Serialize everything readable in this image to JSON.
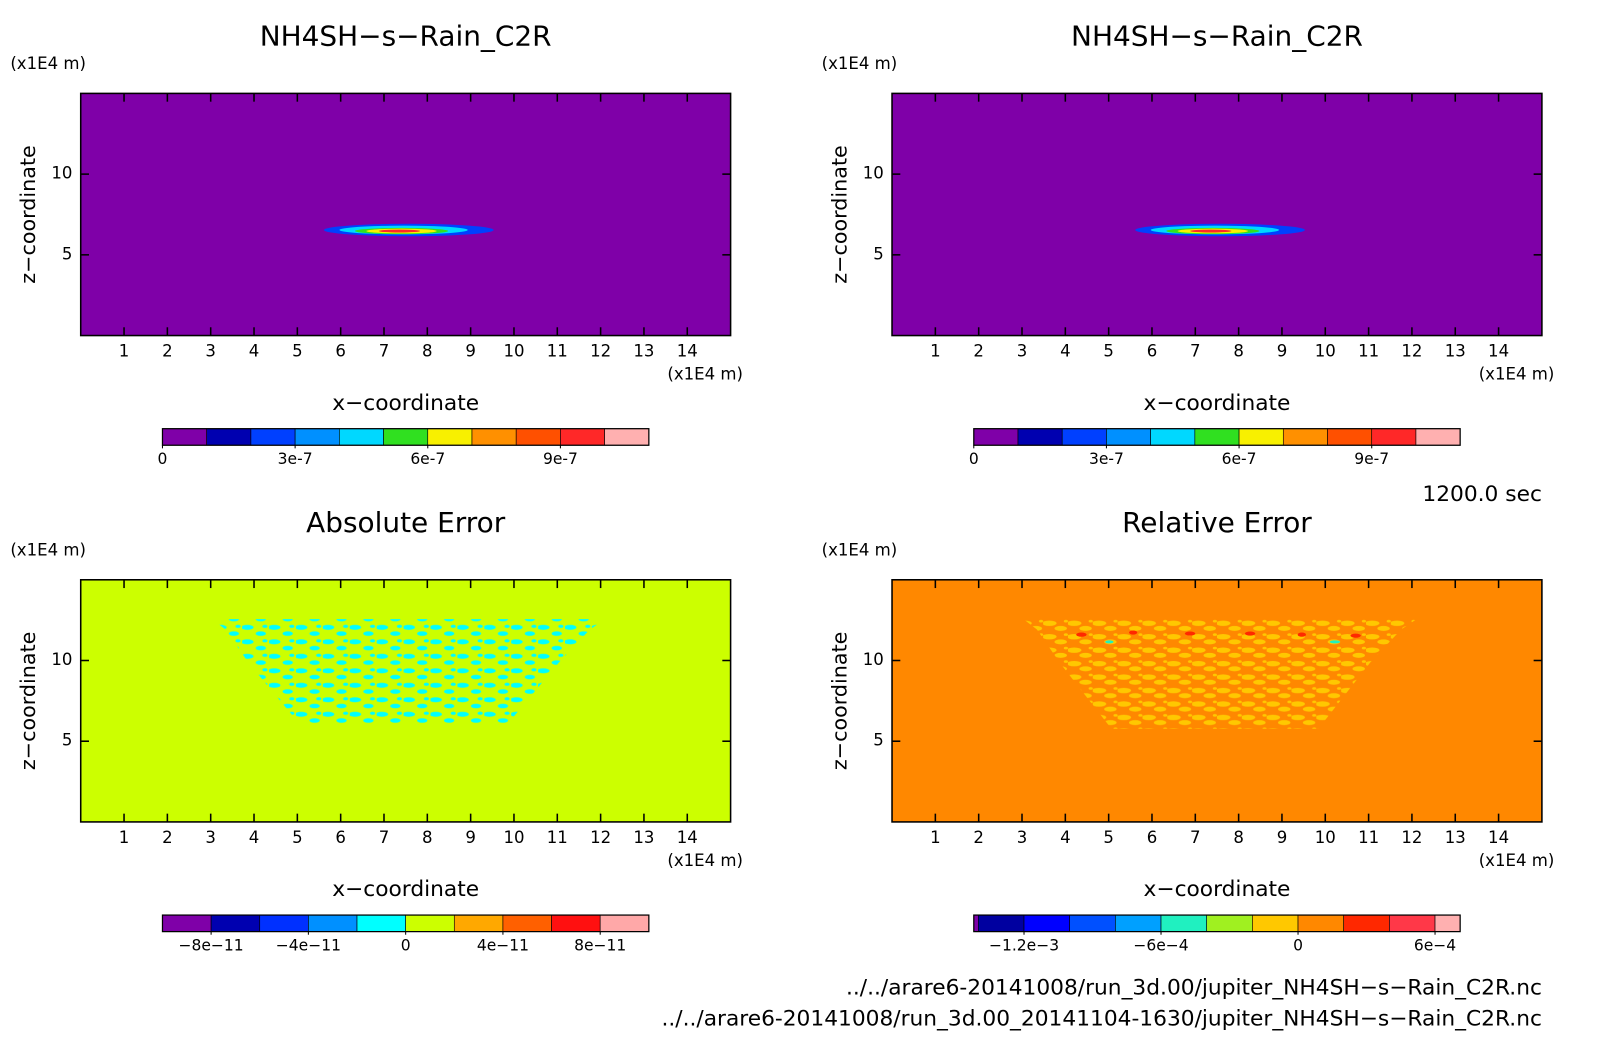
{
  "chart_data": [
    {
      "type": "contour",
      "title": "NH4SH−s−Rain_C2R",
      "xlabel": "x−coordinate",
      "ylabel": "z−coordinate",
      "x_unit": "(x1E4 m)",
      "y_unit": "(x1E4 m)",
      "xlim": [
        0,
        15
      ],
      "ylim": [
        0,
        15
      ],
      "xticks": [
        1,
        2,
        3,
        4,
        5,
        6,
        7,
        8,
        9,
        10,
        11,
        12,
        13,
        14
      ],
      "yticks": [
        5,
        10
      ],
      "background": "#7f00a8",
      "colorbar": {
        "levels": [
          0,
          1e-07,
          2e-07,
          3e-07,
          4e-07,
          5e-07,
          6e-07,
          7e-07,
          8e-07,
          9e-07,
          1e-06,
          1.1e-06
        ],
        "colors": [
          "#7f00a8",
          "#0000b0",
          "#0040ff",
          "#0090ff",
          "#00d8ff",
          "#30e020",
          "#f8f000",
          "#ff9000",
          "#ff5000",
          "#ff2828",
          "#ffb0b0"
        ],
        "ticks": [
          0,
          3e-07,
          6e-07,
          9e-07
        ]
      }
    },
    {
      "type": "contour",
      "title": "NH4SH−s−Rain_C2R",
      "xlabel": "x−coordinate",
      "ylabel": "z−coordinate",
      "x_unit": "(x1E4 m)",
      "y_unit": "(x1E4 m)",
      "xlim": [
        0,
        15
      ],
      "ylim": [
        0,
        15
      ],
      "xticks": [
        1,
        2,
        3,
        4,
        5,
        6,
        7,
        8,
        9,
        10,
        11,
        12,
        13,
        14
      ],
      "yticks": [
        5,
        10
      ],
      "background": "#7f00a8",
      "colorbar": {
        "levels": [
          0,
          1e-07,
          2e-07,
          3e-07,
          4e-07,
          5e-07,
          6e-07,
          7e-07,
          8e-07,
          9e-07,
          1e-06,
          1.1e-06
        ],
        "colors": [
          "#7f00a8",
          "#0000b0",
          "#0040ff",
          "#0090ff",
          "#00d8ff",
          "#30e020",
          "#f8f000",
          "#ff9000",
          "#ff5000",
          "#ff2828",
          "#ffb0b0"
        ],
        "ticks": [
          0,
          3e-07,
          6e-07,
          9e-07
        ]
      }
    },
    {
      "type": "contour",
      "title": "Absolute Error",
      "xlabel": "x−coordinate",
      "ylabel": "z−coordinate",
      "x_unit": "(x1E4 m)",
      "y_unit": "(x1E4 m)",
      "xlim": [
        0,
        15
      ],
      "ylim": [
        0,
        15
      ],
      "xticks": [
        1,
        2,
        3,
        4,
        5,
        6,
        7,
        8,
        9,
        10,
        11,
        12,
        13,
        14
      ],
      "yticks": [
        5,
        10
      ],
      "background": "#ccff00",
      "colorbar": {
        "levels": [
          -1e-10,
          -8e-11,
          -6e-11,
          -4e-11,
          -2e-11,
          0,
          2e-11,
          4e-11,
          6e-11,
          8e-11,
          1e-10
        ],
        "colors": [
          "#7f00a8",
          "#0000b0",
          "#0030ff",
          "#0090ff",
          "#00ffff",
          "#ccff00",
          "#ffa800",
          "#ff6000",
          "#ff1010",
          "#ffa8a8"
        ],
        "ticks": [
          {
            "value": -8e-11,
            "label": "−8e−11"
          },
          {
            "value": -4e-11,
            "label": "−4e−11"
          },
          0,
          {
            "value": 4e-11,
            "label": "4e−11"
          },
          {
            "value": 8e-11,
            "label": "8e−11"
          }
        ]
      }
    },
    {
      "type": "contour",
      "title": "Relative Error",
      "xlabel": "x−coordinate",
      "ylabel": "z−coordinate",
      "x_unit": "(x1E4 m)",
      "y_unit": "(x1E4 m)",
      "xlim": [
        0,
        15
      ],
      "ylim": [
        0,
        15
      ],
      "xticks": [
        1,
        2,
        3,
        4,
        5,
        6,
        7,
        8,
        9,
        10,
        11,
        12,
        13,
        14
      ],
      "yticks": [
        5,
        10
      ],
      "background": "#ff8800",
      "colorbar": {
        "levels": [
          -0.00142,
          -0.0014,
          -0.0012,
          -0.001,
          -0.0008,
          -0.0006,
          -0.0004,
          -0.0002,
          0,
          0.0002,
          0.0004,
          0.0006,
          0.00071
        ],
        "colors": [
          "#7f00a8",
          "#0000a0",
          "#0000ff",
          "#0050ff",
          "#00a0ff",
          "#20f0c0",
          "#a0f020",
          "#ffc800",
          "#ff8800",
          "#ff2800",
          "#ff3848",
          "#ffb0b0"
        ],
        "ticks": [
          {
            "value": -0.0012,
            "label": "−1.2e−3"
          },
          {
            "value": -0.0006,
            "label": "−6e−4"
          },
          0,
          {
            "value": 0.0006,
            "label": "6e−4"
          }
        ]
      }
    }
  ],
  "time": "1200.0 sec",
  "files": [
    "../../arare6-20141008/run_3d.00/jupiter_NH4SH−s−Rain_C2R.nc",
    "../../arare6-20141008/run_3d.00_20141104-1630/jupiter_NH4SH−s−Rain_C2R.nc"
  ]
}
